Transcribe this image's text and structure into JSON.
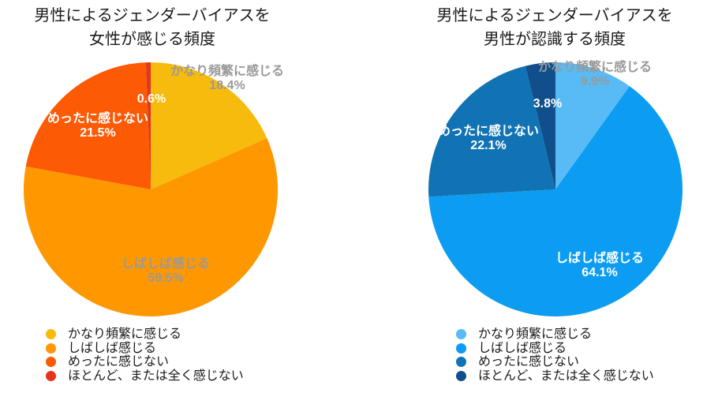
{
  "page": {
    "background": "#FFFFFF",
    "text_color": "#1A1A1A",
    "muted_label_color": "#999999"
  },
  "chart_data": [
    {
      "type": "pie",
      "title": "男性によるジェンダーバイアスを 女性が感じる頻度",
      "title_line1": "男性によるジェンダーバイアスを",
      "title_line2": "女性が感じる頻度",
      "legend_position": "bottom-left",
      "start_angle": "top",
      "direction": "clockwise",
      "categories": [
        "かなり頻繁に感じる",
        "しばしば感じる",
        "めったに感じない",
        "ほとんど、または全く感じない"
      ],
      "values": [
        18.4,
        59.5,
        21.5,
        0.6
      ],
      "slices": [
        {
          "label": "かなり頻繁に感じる",
          "value": 18.4,
          "pct_label": "18.4%",
          "color": "#F6BB0D",
          "text_color": "#999999"
        },
        {
          "label": "しばしば感じる",
          "value": 59.5,
          "pct_label": "59.5%",
          "color": "#FF9800",
          "text_color": "#999999"
        },
        {
          "label": "めったに感じない",
          "value": 21.5,
          "pct_label": "21.5%",
          "color": "#FC5A05",
          "text_color": "#FFFFFF"
        },
        {
          "label": "ほとんど、または全く感じない",
          "value": 0.6,
          "pct_label": "0.6%",
          "color": "#E6351F",
          "text_color": "#FFFFFF"
        }
      ]
    },
    {
      "type": "pie",
      "title": "男性によるジェンダーバイアスを 男性が認識する頻度",
      "title_line1": "男性によるジェンダーバイアスを",
      "title_line2": "男性が認識する頻度",
      "legend_position": "bottom-left",
      "start_angle": "top",
      "direction": "clockwise",
      "categories": [
        "かなり頻繁に感じる",
        "しばしば感じる",
        "めったに感じない",
        "ほとんど、または全く感じない"
      ],
      "values": [
        9.9,
        64.1,
        22.1,
        3.8
      ],
      "slices": [
        {
          "label": "かなり頻繁に感じる",
          "value": 9.9,
          "pct_label": "9.9%",
          "color": "#58BBF5",
          "text_color": "#999999"
        },
        {
          "label": "しばしば感じる",
          "value": 64.1,
          "pct_label": "64.1%",
          "color": "#0C9CF2",
          "text_color": "#FFFFFF"
        },
        {
          "label": "めったに感じない",
          "value": 22.1,
          "pct_label": "22.1%",
          "color": "#1173B4",
          "text_color": "#FFFFFF"
        },
        {
          "label": "ほとんど、または全く感じない",
          "value": 3.8,
          "pct_label": "3.8%",
          "color": "#114E8C",
          "text_color": "#FFFFFF"
        }
      ]
    }
  ]
}
